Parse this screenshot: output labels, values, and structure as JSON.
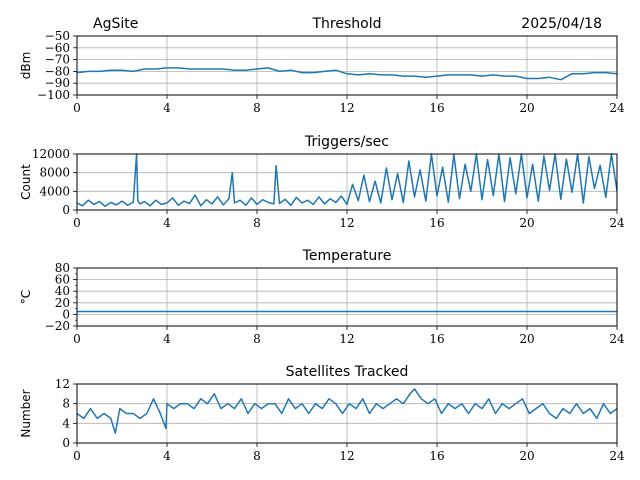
{
  "header": {
    "site": "AgSite",
    "date": "2025/04/18"
  },
  "colors": {
    "series": "#1f77b4",
    "grid": "#b0b0b0"
  },
  "chart_data": [
    {
      "type": "line",
      "title": "Threshold",
      "xlabel": "",
      "ylabel": "dBm",
      "xlim": [
        0,
        24
      ],
      "ylim": [
        -100,
        -50
      ],
      "xticks": [
        0,
        4,
        8,
        12,
        16,
        20,
        24
      ],
      "yticks": [
        -100,
        -90,
        -80,
        -70,
        -60,
        -50
      ],
      "ytick_labels": [
        "−100",
        "−90",
        "−80",
        "−70",
        "−60",
        "−50"
      ],
      "grid": true,
      "series": [
        {
          "x": [
            0,
            0.5,
            1,
            1.5,
            2,
            2.5,
            3,
            3.5,
            4,
            4.5,
            5,
            5.5,
            6,
            6.5,
            7,
            7.5,
            8,
            8.5,
            9,
            9.5,
            10,
            10.5,
            11,
            11.5,
            12,
            12.5,
            13,
            13.5,
            14,
            14.5,
            15,
            15.5,
            16,
            16.5,
            17,
            17.5,
            18,
            18.5,
            19,
            19.5,
            20,
            20.5,
            21,
            21.5,
            22,
            22.5,
            23,
            23.5,
            24
          ],
          "y": [
            -81,
            -80,
            -80,
            -79,
            -79,
            -80,
            -78,
            -78,
            -77,
            -77,
            -78,
            -78,
            -78,
            -78,
            -79,
            -79,
            -78,
            -77,
            -80,
            -79,
            -81,
            -81,
            -80,
            -79,
            -82,
            -83,
            -82,
            -83,
            -83,
            -84,
            -84,
            -85,
            -84,
            -83,
            -83,
            -83,
            -84,
            -83,
            -84,
            -84,
            -86,
            -86,
            -85,
            -87,
            -82,
            -82,
            -81,
            -81,
            -82
          ]
        }
      ]
    },
    {
      "type": "line",
      "title": "Triggers/sec",
      "xlabel": "",
      "ylabel": "Count",
      "xlim": [
        0,
        24
      ],
      "ylim": [
        0,
        12000
      ],
      "xticks": [
        0,
        4,
        8,
        12,
        16,
        20,
        24
      ],
      "yticks": [
        0,
        4000,
        8000,
        12000
      ],
      "ytick_labels": [
        "0",
        "4000",
        "8000",
        "12000"
      ],
      "grid": true,
      "series": [
        {
          "x": [
            0,
            0.25,
            0.5,
            0.75,
            1,
            1.25,
            1.5,
            1.75,
            2,
            2.25,
            2.5,
            2.65,
            2.7,
            2.8,
            3,
            3.25,
            3.5,
            3.75,
            4,
            4.25,
            4.5,
            4.75,
            5,
            5.25,
            5.5,
            5.75,
            6,
            6.25,
            6.5,
            6.75,
            6.9,
            7,
            7.25,
            7.5,
            7.75,
            8,
            8.25,
            8.5,
            8.75,
            8.85,
            9,
            9.25,
            9.5,
            9.75,
            10,
            10.25,
            10.5,
            10.75,
            11,
            11.25,
            11.5,
            11.75,
            12,
            12.25,
            12.5,
            12.75,
            13,
            13.25,
            13.5,
            13.75,
            14,
            14.25,
            14.5,
            14.75,
            15,
            15.25,
            15.5,
            15.75,
            16,
            16.25,
            16.5,
            16.75,
            17,
            17.25,
            17.5,
            17.75,
            18,
            18.25,
            18.5,
            18.75,
            19,
            19.25,
            19.5,
            19.75,
            20,
            20.25,
            20.5,
            20.75,
            21,
            21.25,
            21.5,
            21.75,
            22,
            22.25,
            22.5,
            22.75,
            23,
            23.25,
            23.5,
            23.75,
            24
          ],
          "y": [
            1500,
            900,
            2100,
            1200,
            1800,
            800,
            1600,
            1100,
            1900,
            1000,
            1700,
            12000,
            2000,
            1300,
            1800,
            900,
            2100,
            1200,
            1500,
            2600,
            1000,
            1900,
            1400,
            3200,
            900,
            2200,
            1300,
            2800,
            1100,
            2400,
            8000,
            1500,
            2100,
            1000,
            2600,
            1200,
            2200,
            1600,
            1300,
            9500,
            1400,
            2300,
            1000,
            2700,
            1500,
            2100,
            1200,
            2800,
            1300,
            2400,
            1600,
            3000,
            1200,
            5500,
            2000,
            7500,
            1800,
            6200,
            1500,
            9000,
            2200,
            7800,
            1600,
            10500,
            2800,
            8600,
            1900,
            12000,
            3000,
            9200,
            1700,
            11800,
            2400,
            9800,
            4000,
            12000,
            2200,
            10800,
            3100,
            12000,
            1800,
            11200,
            3500,
            12000,
            2600,
            9800,
            1900,
            11600,
            4200,
            12000,
            2300,
            10900,
            3800,
            12000,
            1500,
            11400,
            4600,
            9600,
            2700,
            12000,
            4100
          ]
        }
      ]
    },
    {
      "type": "line",
      "title": "Temperature",
      "xlabel": "",
      "ylabel": "°C",
      "xlim": [
        0,
        24
      ],
      "ylim": [
        -20,
        80
      ],
      "xticks": [
        0,
        4,
        8,
        12,
        16,
        20,
        24
      ],
      "yticks": [
        -20,
        0,
        20,
        40,
        60,
        80
      ],
      "ytick_labels": [
        "−20",
        "0",
        "20",
        "40",
        "60",
        "80"
      ],
      "minor_yticks": [
        -10,
        10,
        30,
        50,
        70
      ],
      "grid": true,
      "series": [
        {
          "x": [
            0,
            24
          ],
          "y": [
            5,
            5
          ]
        }
      ]
    },
    {
      "type": "line",
      "title": "Satellites Tracked",
      "xlabel": "",
      "ylabel": "Number",
      "xlim": [
        0,
        24
      ],
      "ylim": [
        0,
        12
      ],
      "xticks": [
        0,
        4,
        8,
        12,
        16,
        20,
        24
      ],
      "yticks": [
        0,
        4,
        8,
        12
      ],
      "ytick_labels": [
        "0",
        "4",
        "8",
        "12"
      ],
      "grid": true,
      "series": [
        {
          "x": [
            0,
            0.3,
            0.6,
            0.9,
            1.2,
            1.5,
            1.7,
            1.9,
            2.2,
            2.5,
            2.8,
            3.1,
            3.4,
            3.7,
            3.95,
            4,
            4.3,
            4.6,
            4.9,
            5.2,
            5.5,
            5.8,
            6.1,
            6.4,
            6.7,
            7,
            7.3,
            7.6,
            7.9,
            8.2,
            8.5,
            8.8,
            9.1,
            9.4,
            9.7,
            10,
            10.3,
            10.6,
            10.9,
            11.2,
            11.5,
            11.8,
            12.1,
            12.4,
            12.7,
            13,
            13.3,
            13.6,
            13.9,
            14.2,
            14.5,
            14.8,
            15,
            15.3,
            15.6,
            15.9,
            16.2,
            16.5,
            16.8,
            17.1,
            17.4,
            17.7,
            18,
            18.3,
            18.6,
            18.9,
            19.2,
            19.5,
            19.8,
            20.1,
            20.4,
            20.7,
            21,
            21.3,
            21.6,
            21.9,
            22.2,
            22.5,
            22.8,
            23.1,
            23.4,
            23.7,
            24
          ],
          "y": [
            6,
            5,
            7,
            5,
            6,
            5,
            2,
            7,
            6,
            6,
            5,
            6,
            9,
            6,
            3,
            8,
            7,
            8,
            8,
            7,
            9,
            8,
            10,
            7,
            8,
            7,
            9,
            6,
            8,
            7,
            8,
            8,
            6,
            9,
            7,
            8,
            6,
            8,
            7,
            9,
            8,
            6,
            8,
            7,
            9,
            6,
            8,
            7,
            8,
            9,
            8,
            10,
            11,
            9,
            8,
            9,
            6,
            8,
            7,
            8,
            6,
            8,
            7,
            9,
            6,
            8,
            7,
            8,
            9,
            6,
            7,
            8,
            6,
            5,
            7,
            6,
            8,
            6,
            7,
            5,
            8,
            6,
            7
          ]
        }
      ]
    }
  ]
}
